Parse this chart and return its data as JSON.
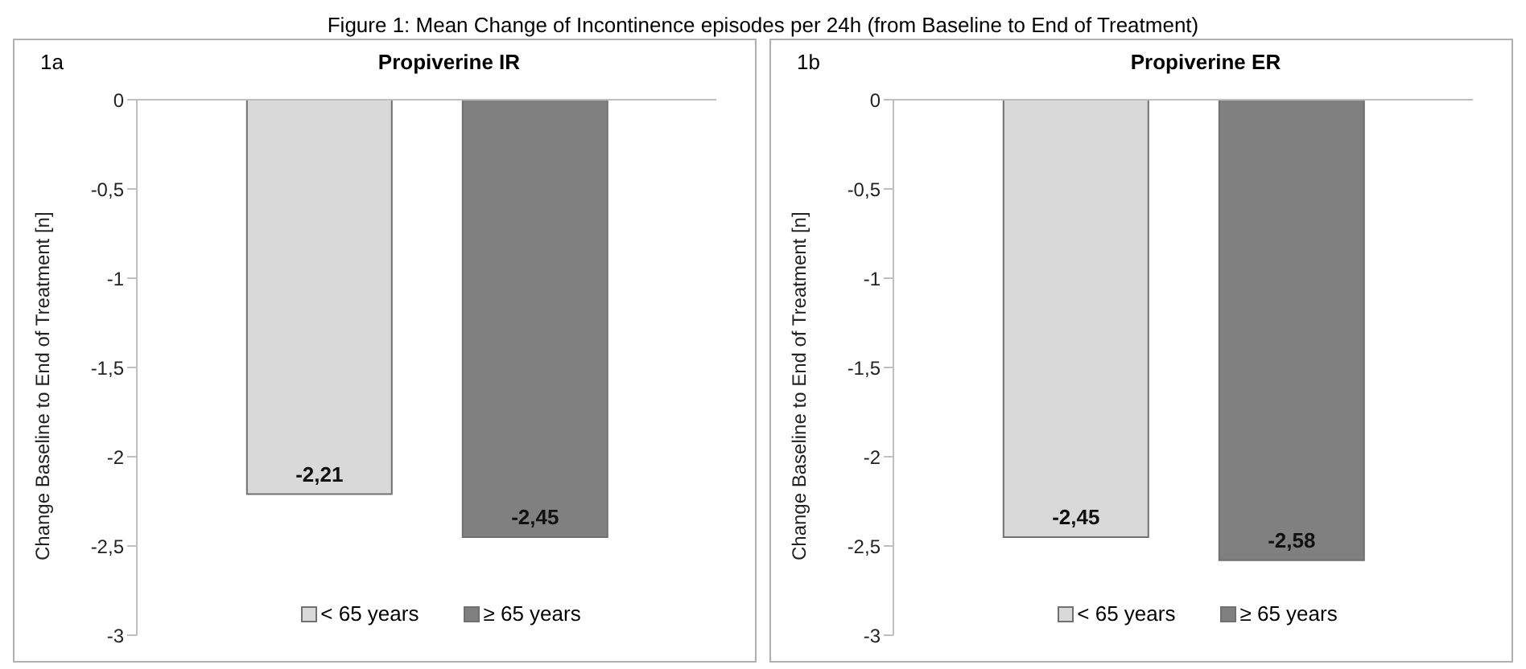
{
  "chart_data": [
    {
      "type": "bar",
      "title": "Propiverine IR",
      "ylabel": "Change Baseline to End of Treatment [n]",
      "annotations": [
        "Figure 1: Mean Change of Incontinence episodes per 24h (from Baseline to End of Treatment)",
        "1a"
      ],
      "categories": [
        null
      ],
      "series": [
        {
          "name": "< 65 years",
          "color": "#d9d9d9",
          "values": [
            -2.21
          ],
          "value_labels": [
            "-2,21"
          ]
        },
        {
          "name": "≥ 65 years",
          "color": "#808080",
          "values": [
            -2.45
          ],
          "value_labels": [
            "-2,45"
          ]
        }
      ],
      "ylim": [
        -3,
        0
      ],
      "yticks": [
        {
          "value": -3,
          "label": "-3"
        },
        {
          "value": -2.5,
          "label": "-2,5"
        },
        {
          "value": -2,
          "label": "-2"
        },
        {
          "value": -1.5,
          "label": "-1,5"
        },
        {
          "value": -1,
          "label": "-1"
        },
        {
          "value": -0.5,
          "label": "-0,5"
        },
        {
          "value": 0,
          "label": "0"
        }
      ],
      "grid": false,
      "legend": "bottom"
    },
    {
      "type": "bar",
      "title": "Propiverine ER",
      "ylabel": "Change Baseline to End of Treatment [n]",
      "annotations": [
        "1b"
      ],
      "categories": [
        null
      ],
      "series": [
        {
          "name": "< 65 years",
          "color": "#d9d9d9",
          "values": [
            -2.45
          ],
          "value_labels": [
            "-2,45"
          ]
        },
        {
          "name": "≥ 65 years",
          "color": "#808080",
          "values": [
            -2.58
          ],
          "value_labels": [
            "-2,58"
          ]
        }
      ],
      "ylim": [
        -3,
        0
      ],
      "yticks": [
        {
          "value": -3,
          "label": "-3"
        },
        {
          "value": -2.5,
          "label": "-2,5"
        },
        {
          "value": -2,
          "label": "-2"
        },
        {
          "value": -1.5,
          "label": "-1,5"
        },
        {
          "value": -1,
          "label": "-1"
        },
        {
          "value": -0.5,
          "label": "-0,5"
        },
        {
          "value": 0,
          "label": "0"
        }
      ],
      "grid": false,
      "legend": "bottom"
    }
  ]
}
